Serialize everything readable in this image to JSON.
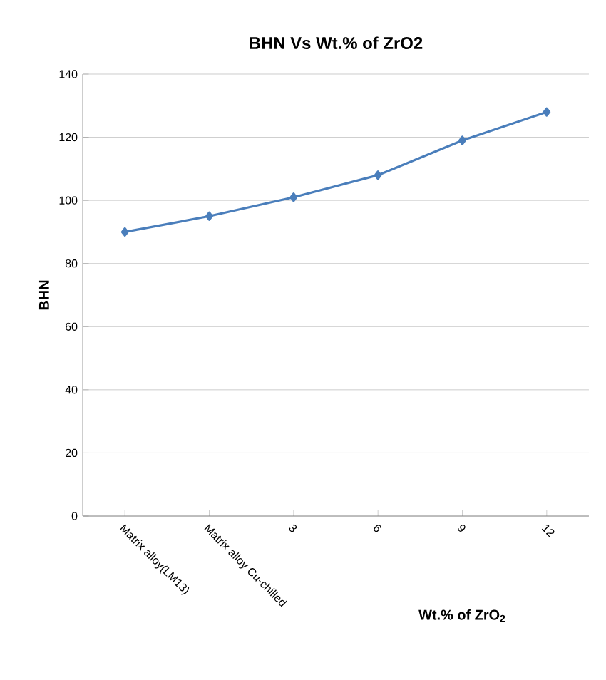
{
  "chart_data": {
    "type": "line",
    "title": "BHN Vs Wt.% of ZrO2",
    "xlabel": "Wt.% of ZrO$_{2}$",
    "ylabel": "BHN",
    "categories": [
      "Matrix alloy(LM13)",
      "Matrix alloy Cu-chilled",
      "3",
      "6",
      "9",
      "12"
    ],
    "series": [
      {
        "color": "#4a7ebb",
        "values": [
          90,
          95,
          101,
          108,
          119,
          128
        ]
      }
    ],
    "ylim": [
      0,
      140
    ],
    "yticks": [
      0,
      20,
      40,
      60,
      80,
      100,
      120,
      140
    ],
    "grid": "y",
    "marker": "diamond",
    "line_style": "solid",
    "legend": false
  }
}
